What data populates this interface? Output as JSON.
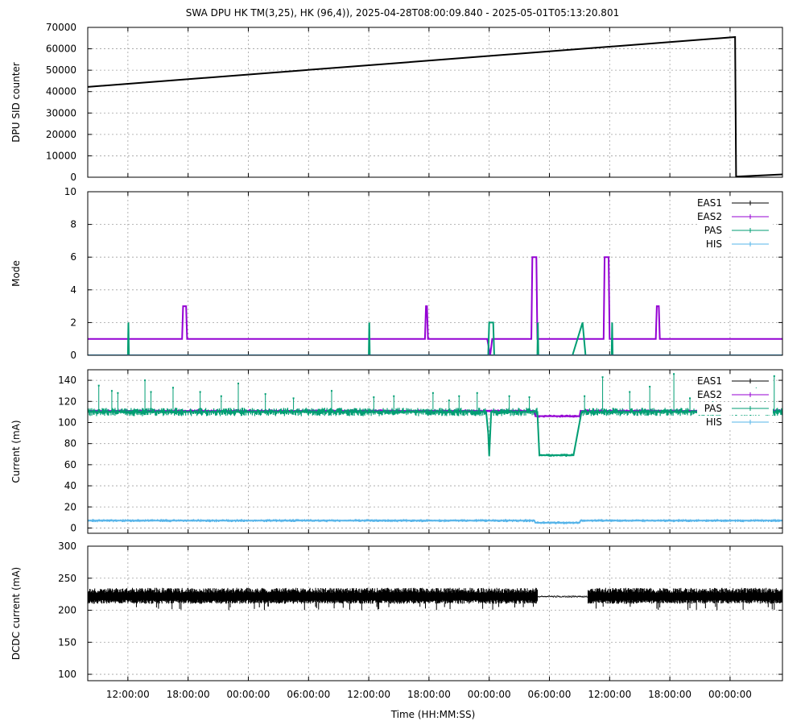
{
  "title": "SWA DPU HK TM(3,25), HK (96,4)),  2025-04-28T08:00:09.840 - 2025-05-01T05:13:20.801",
  "xlabel": "Time (HH:MM:SS)",
  "chart_data": [
    {
      "type": "line",
      "ylabel": "DPU SID counter",
      "ylim": [
        0,
        70000
      ],
      "yticks": [
        0,
        10000,
        20000,
        30000,
        40000,
        50000,
        60000,
        70000
      ],
      "x_unit": "hours since 2025-04-28T08:00:09",
      "xlim": [
        0,
        69.22
      ],
      "xticks": [
        {
          "x": 4,
          "label": "12:00:00"
        },
        {
          "x": 10,
          "label": "18:00:00"
        },
        {
          "x": 16,
          "label": "00:00:00"
        },
        {
          "x": 22,
          "label": "06:00:00"
        },
        {
          "x": 28,
          "label": "12:00:00"
        },
        {
          "x": 34,
          "label": "18:00:00"
        },
        {
          "x": 40,
          "label": "00:00:00"
        },
        {
          "x": 46,
          "label": "06:00:00"
        },
        {
          "x": 52,
          "label": "12:00:00"
        },
        {
          "x": 58,
          "label": "18:00:00"
        },
        {
          "x": 64,
          "label": "00:00:00"
        }
      ],
      "series": [
        {
          "name": "",
          "color": "#000000",
          "points": [
            [
              0,
              42200
            ],
            [
              64.5,
              65500
            ],
            [
              64.6,
              300
            ],
            [
              69.22,
              1300
            ]
          ]
        }
      ]
    },
    {
      "type": "line",
      "ylabel": "Mode",
      "ylim": [
        0,
        10
      ],
      "yticks": [
        0,
        2,
        4,
        6,
        8,
        10
      ],
      "legend": "top-right",
      "series": [
        {
          "name": "EAS1",
          "color": "#000000",
          "points": [
            [
              0,
              0
            ],
            [
              69.22,
              0
            ]
          ]
        },
        {
          "name": "EAS2",
          "color": "#9400d3",
          "points": [
            [
              0,
              1
            ],
            [
              9.4,
              1
            ],
            [
              9.5,
              3
            ],
            [
              9.8,
              3
            ],
            [
              9.9,
              1
            ],
            [
              33.6,
              1
            ],
            [
              33.7,
              3
            ],
            [
              33.8,
              3
            ],
            [
              33.9,
              1
            ],
            [
              39.8,
              1
            ],
            [
              40.1,
              0
            ],
            [
              40.3,
              1
            ],
            [
              44.2,
              1
            ],
            [
              44.3,
              6
            ],
            [
              44.7,
              6
            ],
            [
              44.8,
              1
            ],
            [
              50.1,
              1
            ],
            [
              51.4,
              1
            ],
            [
              51.5,
              6
            ],
            [
              51.9,
              6
            ],
            [
              52.0,
              1
            ],
            [
              56.6,
              1
            ],
            [
              56.7,
              3
            ],
            [
              56.9,
              3
            ],
            [
              57.0,
              1
            ],
            [
              69.22,
              1
            ]
          ]
        },
        {
          "name": "PAS",
          "color": "#009e73",
          "points": [
            [
              0,
              0
            ],
            [
              4.0,
              0
            ],
            [
              4.05,
              2
            ],
            [
              4.1,
              0
            ],
            [
              28.0,
              0
            ],
            [
              28.05,
              2
            ],
            [
              28.1,
              0
            ],
            [
              39.9,
              0
            ],
            [
              40.0,
              2
            ],
            [
              40.4,
              2
            ],
            [
              40.5,
              0
            ],
            [
              44.8,
              0
            ],
            [
              44.85,
              2
            ],
            [
              44.9,
              0
            ],
            [
              48.3,
              0
            ],
            [
              49.3,
              2
            ],
            [
              49.6,
              0
            ],
            [
              52.2,
              0
            ],
            [
              52.25,
              2
            ],
            [
              52.3,
              0
            ],
            [
              69.22,
              0
            ]
          ]
        },
        {
          "name": "HIS",
          "color": "#56b4e9",
          "points": [
            [
              0,
              0
            ],
            [
              69.22,
              0
            ]
          ]
        }
      ]
    },
    {
      "type": "line",
      "ylabel": "Current (mA)",
      "ylim": [
        -5,
        150
      ],
      "yticks": [
        0,
        20,
        40,
        60,
        80,
        100,
        120,
        140
      ],
      "legend": "top-right",
      "series": [
        {
          "name": "EAS1",
          "color": "#000000",
          "points": []
        },
        {
          "name": "EAS2",
          "color": "#9400d3",
          "points": [
            [
              0,
              111
            ],
            [
              44.5,
              111
            ],
            [
              44.6,
              106
            ],
            [
              49.0,
              106
            ],
            [
              49.1,
              111
            ],
            [
              69.22,
              111
            ]
          ]
        },
        {
          "name": "PAS",
          "color": "#009e73",
          "points": [
            [
              0,
              110
            ],
            [
              39.7,
              110
            ],
            [
              39.9,
              90
            ],
            [
              40.0,
              68
            ],
            [
              40.2,
              110
            ],
            [
              44.8,
              110
            ],
            [
              45.0,
              69
            ],
            [
              48.4,
              69
            ],
            [
              49.2,
              110
            ],
            [
              69.22,
              110
            ]
          ],
          "spikes": [
            [
              1.1,
              135
            ],
            [
              2.4,
              130
            ],
            [
              3.0,
              128
            ],
            [
              5.7,
              140
            ],
            [
              6.3,
              129
            ],
            [
              8.5,
              133
            ],
            [
              11.2,
              129
            ],
            [
              13.3,
              125
            ],
            [
              15.0,
              137
            ],
            [
              17.7,
              127
            ],
            [
              20.5,
              123
            ],
            [
              24.3,
              130
            ],
            [
              28.5,
              124
            ],
            [
              30.5,
              125
            ],
            [
              34.4,
              128
            ],
            [
              36.0,
              121
            ],
            [
              37.0,
              125
            ],
            [
              38.8,
              128
            ],
            [
              42.0,
              125
            ],
            [
              44.0,
              124
            ],
            [
              49.5,
              125
            ],
            [
              51.3,
              143
            ],
            [
              54.0,
              129
            ],
            [
              56.0,
              134
            ],
            [
              58.4,
              146
            ],
            [
              60.0,
              123
            ],
            [
              62.3,
              129
            ],
            [
              65.0,
              131
            ],
            [
              66.6,
              144
            ],
            [
              67.5,
              130
            ],
            [
              68.4,
              144
            ]
          ]
        },
        {
          "name": "HIS",
          "color": "#56b4e9",
          "points": [
            [
              0,
              7
            ],
            [
              44.5,
              7
            ],
            [
              44.6,
              5
            ],
            [
              49.0,
              5
            ],
            [
              49.1,
              7
            ],
            [
              69.22,
              7
            ]
          ]
        }
      ]
    },
    {
      "type": "line",
      "ylabel": "DCDC current (mA)",
      "ylim": [
        90,
        300
      ],
      "yticks": [
        100,
        150,
        200,
        250,
        300
      ],
      "series": [
        {
          "name": "",
          "color": "#000000",
          "band": [
            210,
            235
          ],
          "quiet": [
            [
              44.8,
              49.8,
              222
            ]
          ]
        }
      ]
    }
  ]
}
